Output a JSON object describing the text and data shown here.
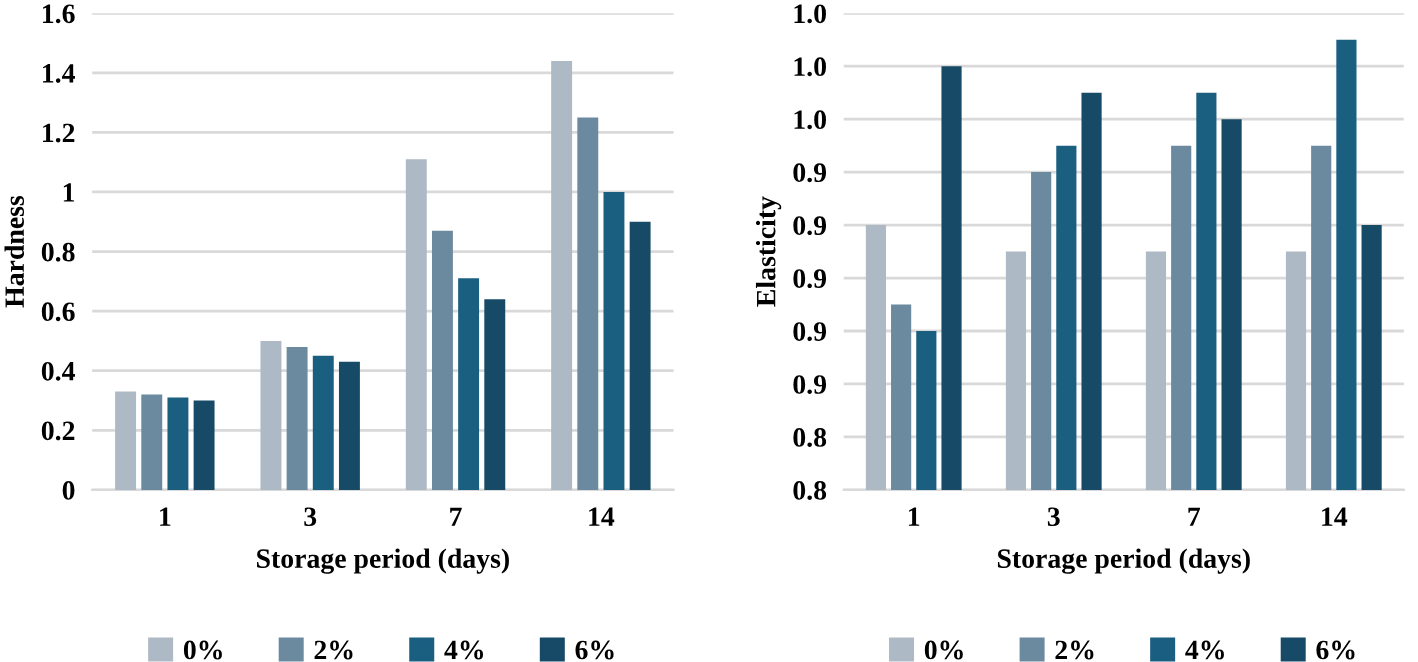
{
  "chart_data": [
    {
      "type": "bar",
      "ylabel": "Hardness",
      "xlabel": "Storage period (days)",
      "categories": [
        "1",
        "3",
        "7",
        "14"
      ],
      "ylim": [
        0,
        1.6
      ],
      "yticks": [
        0,
        0.2,
        0.4,
        0.6,
        0.8,
        {
          "value": 1.0,
          "label": "1"
        },
        1.2,
        1.4,
        1.6
      ],
      "grid": "y",
      "legend": "bottom",
      "series": [
        {
          "name": "0%",
          "color": "#adb9c5",
          "values": [
            0.33,
            0.5,
            1.11,
            1.44
          ]
        },
        {
          "name": "2%",
          "color": "#6b8aa0",
          "values": [
            0.32,
            0.48,
            0.87,
            1.25
          ]
        },
        {
          "name": "4%",
          "color": "#1a5e80",
          "values": [
            0.31,
            0.45,
            0.71,
            1.0
          ]
        },
        {
          "name": "6%",
          "color": "#174a66",
          "values": [
            0.3,
            0.43,
            0.64,
            0.9
          ]
        }
      ]
    },
    {
      "type": "bar",
      "ylabel": "Elasticity",
      "xlabel": "Storage period (days)",
      "categories": [
        "1",
        "3",
        "7",
        "14"
      ],
      "ylim": [
        0.82,
        1.0
      ],
      "yticks": [
        {
          "value": 0.82,
          "label": "0.8"
        },
        {
          "value": 0.84,
          "label": "0.8"
        },
        {
          "value": 0.86,
          "label": "0.9"
        },
        {
          "value": 0.88,
          "label": "0.9"
        },
        {
          "value": 0.9,
          "label": "0.9"
        },
        {
          "value": 0.92,
          "label": "0.9"
        },
        {
          "value": 0.94,
          "label": "0.9"
        },
        {
          "value": 0.96,
          "label": "1.0"
        },
        {
          "value": 0.98,
          "label": "1.0"
        },
        {
          "value": 1.0,
          "label": "1.0"
        }
      ],
      "grid": "y",
      "legend": "bottom",
      "series": [
        {
          "name": "0%",
          "color": "#adb9c5",
          "values": [
            0.92,
            0.91,
            0.91,
            0.91
          ]
        },
        {
          "name": "2%",
          "color": "#6b8aa0",
          "values": [
            0.89,
            0.94,
            0.95,
            0.95
          ]
        },
        {
          "name": "4%",
          "color": "#1a5e80",
          "values": [
            0.88,
            0.95,
            0.97,
            0.99
          ]
        },
        {
          "name": "6%",
          "color": "#174a66",
          "values": [
            0.98,
            0.97,
            0.96,
            0.92
          ]
        }
      ]
    }
  ]
}
